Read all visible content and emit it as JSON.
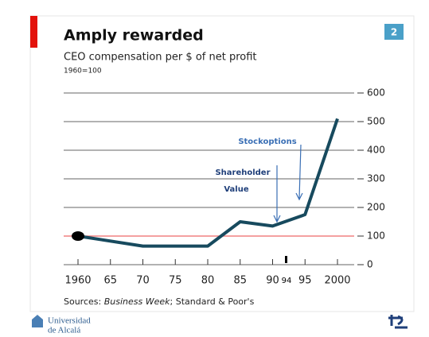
{
  "chart_data": {
    "type": "line",
    "title": "Amply rewarded",
    "subtitle": "CEO compensation per $ of net profit",
    "base_note": "1960=100",
    "badge": "2",
    "x": [
      1960,
      1970,
      1980,
      1985,
      1990,
      1995,
      2000
    ],
    "series": [
      {
        "name": "CEO compensation",
        "color": "#174a5e",
        "values": [
          100,
          65,
          65,
          150,
          135,
          175,
          510
        ]
      }
    ],
    "xlim": [
      1960,
      2000
    ],
    "xticks": [
      1960,
      {
        "value": 1965,
        "label": "65"
      },
      {
        "value": 1970,
        "label": "70"
      },
      {
        "value": 1975,
        "label": "75"
      },
      {
        "value": 1980,
        "label": "80"
      },
      {
        "value": 1985,
        "label": "85"
      },
      {
        "value": 1990,
        "label": "90"
      },
      {
        "value": 1995,
        "label": "95"
      },
      2000
    ],
    "ylim": [
      0,
      600
    ],
    "yticks": [
      0,
      100,
      200,
      300,
      400,
      500,
      600
    ],
    "highlight_line": 100,
    "grid": true,
    "annotations": [
      "Stockoptions",
      "Shareholder",
      "Value",
      "94"
    ],
    "source": [
      "Sources: ",
      "Business Week",
      "; Standard & Poor's"
    ]
  },
  "footer": {
    "university": [
      "Universidad",
      "de Alcalá"
    ]
  }
}
